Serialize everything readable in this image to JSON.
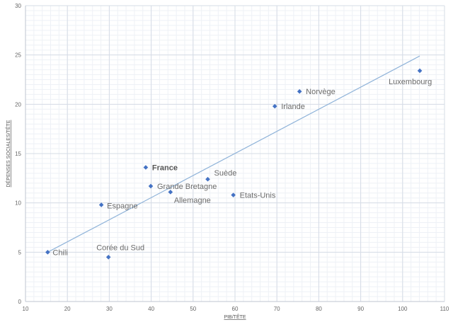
{
  "chart_data": {
    "type": "scatter",
    "xlabel": "PIB/TÊTE",
    "ylabel": "DÉPENSES SOCIALES/TÊTE",
    "xlim": [
      10,
      110
    ],
    "ylim": [
      0,
      30
    ],
    "xticks": [
      "10",
      "20",
      "30",
      "40",
      "50",
      "60",
      "70",
      "80",
      "90",
      "100",
      "110"
    ],
    "yticks": [
      "0",
      "5",
      "10",
      "15",
      "20",
      "25",
      "30"
    ],
    "grid": true,
    "marker_color": "#4472c4",
    "trendline": {
      "type": "linear",
      "color": "#8fb3d9",
      "x": [
        15.3,
        104.1
      ],
      "y": [
        5.0,
        24.9
      ]
    },
    "points": [
      {
        "label": "Chili",
        "x": 15.3,
        "y": 5.0
      },
      {
        "label": "Corée du Sud",
        "x": 29.8,
        "y": 4.5
      },
      {
        "label": "Espagne",
        "x": 28.1,
        "y": 9.8
      },
      {
        "label": "France",
        "x": 38.7,
        "y": 13.6,
        "bold": true
      },
      {
        "label": "Grande Bretagne",
        "x": 39.9,
        "y": 11.7
      },
      {
        "label": "Allemagne",
        "x": 44.6,
        "y": 11.1
      },
      {
        "label": "Suède",
        "x": 53.5,
        "y": 12.4
      },
      {
        "label": "Etats-Unis",
        "x": 59.6,
        "y": 10.8
      },
      {
        "label": "Irlande",
        "x": 69.5,
        "y": 19.8
      },
      {
        "label": "Norvège",
        "x": 75.4,
        "y": 21.3
      },
      {
        "label": "Luxembourg",
        "x": 104.1,
        "y": 23.4
      }
    ]
  }
}
